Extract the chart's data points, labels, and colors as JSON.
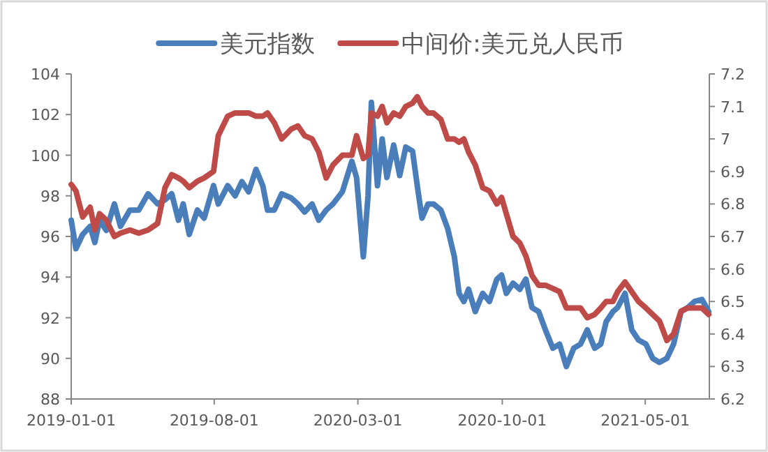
{
  "chart_data": {
    "type": "line",
    "legend": "top",
    "grid": false,
    "marker": "none",
    "line_style": "solid",
    "x": [
      "2019-01-01",
      "2019-01-08",
      "2019-01-18",
      "2019-01-29",
      "2019-02-05",
      "2019-02-12",
      "2019-02-22",
      "2019-03-06",
      "2019-03-15",
      "2019-03-29",
      "2019-04-11",
      "2019-04-25",
      "2019-05-09",
      "2019-05-20",
      "2019-05-30",
      "2019-06-09",
      "2019-06-16",
      "2019-06-25",
      "2019-07-07",
      "2019-07-17",
      "2019-07-31",
      "2019-08-07",
      "2019-08-21",
      "2019-09-01",
      "2019-09-11",
      "2019-09-21",
      "2019-10-02",
      "2019-10-12",
      "2019-10-19",
      "2019-10-29",
      "2019-11-09",
      "2019-11-23",
      "2019-12-03",
      "2019-12-13",
      "2019-12-24",
      "2020-01-03",
      "2020-01-14",
      "2020-01-24",
      "2020-02-07",
      "2020-02-21",
      "2020-02-28",
      "2020-03-09",
      "2020-03-16",
      "2020-03-21",
      "2020-03-30",
      "2020-04-06",
      "2020-04-13",
      "2020-04-23",
      "2020-05-02",
      "2020-05-11",
      "2020-05-21",
      "2020-05-28",
      "2020-06-04",
      "2020-06-13",
      "2020-06-21",
      "2020-07-02",
      "2020-07-12",
      "2020-07-22",
      "2020-07-29",
      "2020-08-05",
      "2020-08-12",
      "2020-08-22",
      "2020-09-02",
      "2020-09-12",
      "2020-09-23",
      "2020-09-30",
      "2020-10-07",
      "2020-10-17",
      "2020-10-27",
      "2020-11-05",
      "2020-11-14",
      "2020-11-24",
      "2020-12-04",
      "2020-12-15",
      "2020-12-25",
      "2021-01-04",
      "2021-01-15",
      "2021-01-25",
      "2021-02-04",
      "2021-02-15",
      "2021-02-24",
      "2021-03-04",
      "2021-03-14",
      "2021-03-21",
      "2021-04-01",
      "2021-04-11",
      "2021-04-21",
      "2021-05-02",
      "2021-05-12",
      "2021-05-22",
      "2021-06-02",
      "2021-06-12",
      "2021-06-23",
      "2021-07-03",
      "2021-07-13",
      "2021-07-24",
      "2021-08-03"
    ],
    "series": [
      {
        "name": "美元指数",
        "color": "#4a7ebb",
        "values": [
          96.8,
          95.4,
          96.1,
          96.5,
          95.7,
          96.8,
          96.3,
          97.6,
          96.5,
          97.3,
          97.3,
          98.1,
          97.6,
          97.8,
          98.1,
          96.8,
          97.6,
          96.1,
          97.3,
          96.9,
          98.5,
          97.6,
          98.5,
          98.0,
          98.7,
          98.2,
          99.3,
          98.5,
          97.3,
          97.3,
          98.1,
          97.9,
          97.6,
          97.2,
          97.6,
          96.8,
          97.3,
          97.6,
          98.2,
          99.7,
          98.9,
          95.0,
          98.0,
          102.6,
          98.5,
          100.8,
          98.9,
          100.5,
          99.0,
          100.4,
          100.2,
          98.5,
          96.9,
          97.6,
          97.6,
          97.3,
          96.4,
          95.0,
          93.2,
          92.8,
          93.4,
          92.3,
          93.2,
          92.8,
          93.9,
          94.1,
          93.2,
          93.7,
          93.4,
          93.9,
          92.5,
          92.3,
          91.4,
          90.5,
          90.7,
          89.6,
          90.5,
          90.7,
          91.4,
          90.5,
          90.7,
          91.8,
          92.3,
          92.5,
          93.2,
          91.4,
          90.9,
          90.7,
          90.0,
          89.8,
          90.0,
          90.7,
          92.3,
          92.5,
          92.8,
          92.9,
          92.3
        ]
      },
      {
        "name": "中间价:美元兑人民币",
        "color": "#be4b48",
        "axis": "y2",
        "values": [
          6.86,
          6.84,
          6.76,
          6.79,
          6.72,
          6.77,
          6.75,
          6.7,
          6.71,
          6.72,
          6.71,
          6.72,
          6.74,
          6.85,
          6.89,
          6.88,
          6.87,
          6.85,
          6.87,
          6.88,
          6.9,
          7.01,
          7.07,
          7.08,
          7.08,
          7.08,
          7.07,
          7.07,
          7.08,
          7.05,
          7.0,
          7.03,
          7.04,
          7.01,
          7.0,
          6.96,
          6.88,
          6.92,
          6.95,
          6.95,
          7.01,
          6.94,
          6.95,
          7.08,
          7.07,
          7.1,
          7.05,
          7.08,
          7.07,
          7.1,
          7.11,
          7.13,
          7.1,
          7.08,
          7.08,
          7.06,
          7.0,
          7.0,
          6.99,
          7.0,
          6.96,
          6.92,
          6.85,
          6.84,
          6.8,
          6.82,
          6.77,
          6.7,
          6.68,
          6.64,
          6.58,
          6.55,
          6.55,
          6.54,
          6.53,
          6.48,
          6.48,
          6.48,
          6.45,
          6.46,
          6.48,
          6.5,
          6.5,
          6.53,
          6.56,
          6.53,
          6.5,
          6.48,
          6.46,
          6.44,
          6.38,
          6.4,
          6.47,
          6.48,
          6.48,
          6.48,
          6.46
        ]
      }
    ],
    "xlim": [
      "2019-01-01",
      "2021-08-04"
    ],
    "xticks": [
      "2019-01-01",
      "2019-08-01",
      "2020-03-01",
      "2020-10-01",
      "2021-05-01"
    ],
    "ylim": [
      88,
      104
    ],
    "yticks": [
      88,
      90,
      92,
      94,
      96,
      98,
      100,
      102,
      104
    ],
    "y2lim": [
      6.2,
      7.2
    ],
    "y2ticks": [
      6.2,
      6.3,
      6.4,
      6.5,
      6.6,
      6.7,
      6.8,
      6.9,
      7,
      7.1,
      7.2
    ]
  }
}
